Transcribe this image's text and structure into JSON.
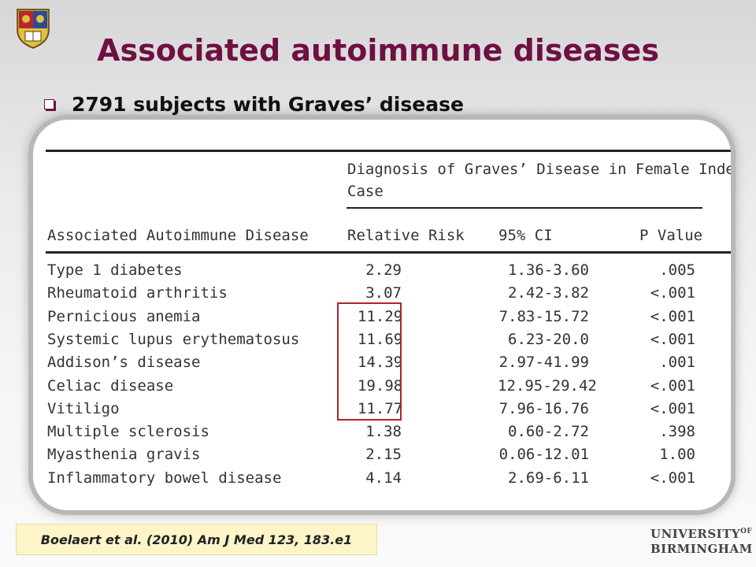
{
  "slide": {
    "title": "Associated autoimmune diseases",
    "bullet": "2791 subjects with Graves’ disease",
    "citation": "Boelaert et al. (2010) Am J Med 123, 183.e1"
  },
  "university": {
    "line1": "UNIVERSITY",
    "of": "OF",
    "line2": "BIRMINGHAM"
  },
  "table": {
    "group_header_line1": "Diagnosis of Graves’ Disease in Female Index",
    "group_header_line2": "Case",
    "columns": [
      "Associated Autoimmune Disease",
      "Relative Risk",
      "95% CI",
      "P Value"
    ],
    "rows": [
      {
        "disease": "Type 1 diabetes",
        "rr": "2.29",
        "ci": "1.36-3.60",
        "p": ".005"
      },
      {
        "disease": "Rheumatoid arthritis",
        "rr": "3.07",
        "ci": "2.42-3.82",
        "p": "<.001"
      },
      {
        "disease": "Pernicious anemia",
        "rr": "11.29",
        "ci": "7.83-15.72",
        "p": "<.001"
      },
      {
        "disease": "Systemic lupus erythematosus",
        "rr": "11.69",
        "ci": "6.23-20.0",
        "p": "<.001"
      },
      {
        "disease": "Addison’s disease",
        "rr": "14.39",
        "ci": "2.97-41.99",
        "p": ".001"
      },
      {
        "disease": "Celiac disease",
        "rr": "19.98",
        "ci": "12.95-29.42",
        "p": "<.001"
      },
      {
        "disease": "Vitiligo",
        "rr": "11.77",
        "ci": "7.96-16.76",
        "p": "<.001"
      },
      {
        "disease": "Multiple sclerosis",
        "rr": "1.38",
        "ci": "0.60-2.72",
        "p": ".398"
      },
      {
        "disease": "Myasthenia gravis",
        "rr": "2.15",
        "ci": "0.06-12.01",
        "p": "1.00"
      },
      {
        "disease": "Inflammatory bowel disease",
        "rr": "4.14",
        "ci": "2.69-6.11",
        "p": "<.001"
      }
    ]
  },
  "colors": {
    "title": "#6e1042",
    "highlight_box": "#b0232a",
    "citation_bg": "#fdf5c8"
  }
}
